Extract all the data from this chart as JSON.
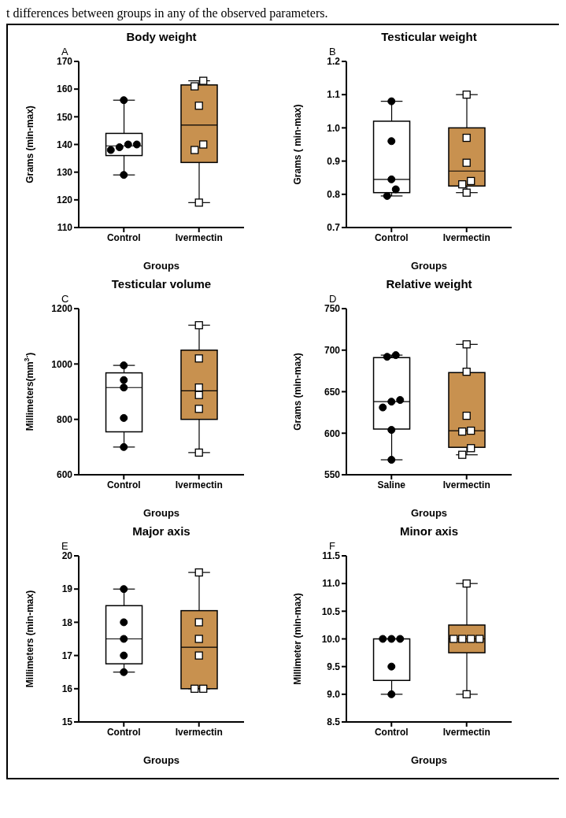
{
  "chart_data": [
    {
      "type": "box",
      "title": "Body weight",
      "annotations": [
        "A",
        "t differences between groups in any of the observed parameters."
      ],
      "xlabel": "Groups",
      "ylabel": "Grams (min-max)",
      "categories": [
        "Control",
        "Ivermectin"
      ],
      "colors": [
        "#ffffff",
        "#c8914f"
      ],
      "ylim": [
        110,
        170
      ],
      "yticks": [
        110,
        120,
        130,
        140,
        150,
        160,
        170
      ],
      "boxes": [
        {
          "low": 129,
          "q1": 136,
          "median": 139.5,
          "q3": 144,
          "high": 156
        },
        {
          "low": 119,
          "q1": 133.5,
          "median": 147,
          "q3": 161.5,
          "high": 163
        }
      ],
      "series": [
        {
          "type": "scatter",
          "marker": "circle",
          "color": "#000000",
          "x": [
            "Control",
            "Control",
            "Control",
            "Control",
            "Control",
            "Control"
          ],
          "values": [
            156,
            140,
            140,
            139,
            138,
            129
          ]
        },
        {
          "type": "scatter",
          "marker": "square",
          "color": "#ffffff",
          "x": [
            "Ivermectin",
            "Ivermectin",
            "Ivermectin",
            "Ivermectin",
            "Ivermectin",
            "Ivermectin"
          ],
          "values": [
            163,
            161,
            154,
            140,
            138,
            119
          ]
        }
      ]
    },
    {
      "type": "box",
      "title": "Testicular weight",
      "annotations": [
        "B"
      ],
      "xlabel": "Groups",
      "ylabel": "Grams ( min-max)",
      "categories": [
        "Control",
        "Ivermectin"
      ],
      "colors": [
        "#ffffff",
        "#c8914f"
      ],
      "ylim": [
        0.7,
        1.2
      ],
      "yticks": [
        0.7,
        0.8,
        0.9,
        {
          "value": 1,
          "label": "1.0"
        },
        1.1,
        1.2
      ],
      "boxes": [
        {
          "low": 0.795,
          "q1": 0.805,
          "median": 0.845,
          "q3": 1.02,
          "high": 1.08
        },
        {
          "low": 0.805,
          "q1": 0.825,
          "median": 0.87,
          "q3": 1.0,
          "high": 1.1
        }
      ],
      "series": [
        {
          "type": "scatter",
          "marker": "circle",
          "color": "#000000",
          "x": [
            "Control",
            "Control",
            "Control",
            "Control",
            "Control"
          ],
          "values": [
            1.08,
            0.96,
            0.845,
            0.815,
            0.795
          ]
        },
        {
          "type": "scatter",
          "marker": "square",
          "color": "#ffffff",
          "x": [
            "Ivermectin",
            "Ivermectin",
            "Ivermectin",
            "Ivermectin",
            "Ivermectin",
            "Ivermectin"
          ],
          "values": [
            1.1,
            0.97,
            0.895,
            0.84,
            0.83,
            0.805
          ]
        }
      ]
    },
    {
      "type": "box",
      "title": "Testicular volume",
      "annotations": [
        "C"
      ],
      "xlabel": "Groups",
      "ylabel": "Millimeters(mm$^{3-}$)",
      "categories": [
        "Control",
        "Ivermectin"
      ],
      "colors": [
        "#ffffff",
        "#c8914f"
      ],
      "ylim": [
        600,
        1200
      ],
      "yticks": [
        600,
        800,
        1000,
        1200
      ],
      "boxes": [
        {
          "low": 700,
          "q1": 755,
          "median": 915,
          "q3": 968,
          "high": 995
        },
        {
          "low": 680,
          "q1": 800,
          "median": 903,
          "q3": 1050,
          "high": 1140
        }
      ],
      "series": [
        {
          "type": "scatter",
          "marker": "circle",
          "color": "#000000",
          "x": [
            "Control",
            "Control",
            "Control",
            "Control",
            "Control"
          ],
          "values": [
            995,
            942,
            915,
            805,
            700
          ]
        },
        {
          "type": "scatter",
          "marker": "square",
          "color": "#ffffff",
          "x": [
            "Ivermectin",
            "Ivermectin",
            "Ivermectin",
            "Ivermectin",
            "Ivermectin",
            "Ivermectin"
          ],
          "values": [
            1140,
            1020,
            915,
            888,
            838,
            680
          ]
        }
      ]
    },
    {
      "type": "box",
      "title": "Relative weight",
      "annotations": [
        "D"
      ],
      "xlabel": "Groups",
      "ylabel": "Grams (min-max)",
      "categories": [
        "Saline",
        "Ivermectin"
      ],
      "colors": [
        "#ffffff",
        "#c8914f"
      ],
      "ylim": [
        550,
        750
      ],
      "yticks": [
        550,
        600,
        650,
        700,
        750
      ],
      "boxes": [
        {
          "low": 568,
          "q1": 605,
          "median": 638,
          "q3": 691,
          "high": 694
        },
        {
          "low": 574,
          "q1": 583,
          "median": 603,
          "q3": 673,
          "high": 707
        }
      ],
      "series": [
        {
          "type": "scatter",
          "marker": "circle",
          "color": "#000000",
          "x": [
            "Saline",
            "Saline",
            "Saline",
            "Saline",
            "Saline",
            "Saline",
            "Saline"
          ],
          "values": [
            694,
            692,
            640,
            638,
            631,
            604,
            568
          ]
        },
        {
          "type": "scatter",
          "marker": "square",
          "color": "#ffffff",
          "x": [
            "Ivermectin",
            "Ivermectin",
            "Ivermectin",
            "Ivermectin",
            "Ivermectin",
            "Ivermectin",
            "Ivermectin"
          ],
          "values": [
            707,
            674,
            621,
            603,
            602,
            582,
            574
          ]
        }
      ]
    },
    {
      "type": "box",
      "title": "Major axis",
      "annotations": [
        "E"
      ],
      "xlabel": "Groups",
      "ylabel": "Millimeters (min-max)",
      "categories": [
        "Control",
        "Ivermectin"
      ],
      "colors": [
        "#ffffff",
        "#c8914f"
      ],
      "ylim": [
        15,
        20
      ],
      "yticks": [
        15,
        16,
        17,
        18,
        19,
        20
      ],
      "boxes": [
        {
          "low": 16.5,
          "q1": 16.75,
          "median": 17.5,
          "q3": 18.5,
          "high": 19
        },
        {
          "low": 16,
          "q1": 16,
          "median": 17.25,
          "q3": 18.35,
          "high": 19.5
        }
      ],
      "series": [
        {
          "type": "scatter",
          "marker": "circle",
          "color": "#000000",
          "x": [
            "Control",
            "Control",
            "Control",
            "Control",
            "Control"
          ],
          "values": [
            19,
            18,
            17.5,
            17,
            16.5
          ]
        },
        {
          "type": "scatter",
          "marker": "square",
          "color": "#ffffff",
          "x": [
            "Ivermectin",
            "Ivermectin",
            "Ivermectin",
            "Ivermectin",
            "Ivermectin",
            "Ivermectin"
          ],
          "values": [
            19.5,
            18,
            17.5,
            17,
            16,
            16
          ]
        }
      ]
    },
    {
      "type": "box",
      "title": "Minor axis",
      "annotations": [
        "F"
      ],
      "xlabel": "Groups",
      "ylabel": "Millimeter (min-max)",
      "categories": [
        "Control",
        "Ivermectin"
      ],
      "colors": [
        "#ffffff",
        "#c8914f"
      ],
      "ylim": [
        8.5,
        11.5
      ],
      "yticks": [
        8.5,
        {
          "value": 9,
          "label": "9.0"
        },
        9.5,
        {
          "value": 10,
          "label": "10.0"
        },
        10.5,
        {
          "value": 11,
          "label": "11.0"
        },
        11.5
      ],
      "boxes": [
        {
          "low": 9,
          "q1": 9.25,
          "median": 10,
          "q3": 10,
          "high": 10
        },
        {
          "low": 9,
          "q1": 9.75,
          "median": 10,
          "q3": 10.25,
          "high": 11
        }
      ],
      "series": [
        {
          "type": "scatter",
          "marker": "circle",
          "color": "#000000",
          "x": [
            "Control",
            "Control",
            "Control",
            "Control",
            "Control"
          ],
          "values": [
            10,
            10,
            10,
            9.5,
            9
          ]
        },
        {
          "type": "scatter",
          "marker": "square",
          "color": "#ffffff",
          "x": [
            "Ivermectin",
            "Ivermectin",
            "Ivermectin",
            "Ivermectin",
            "Ivermectin",
            "Ivermectin"
          ],
          "values": [
            11,
            10,
            10,
            10,
            10,
            9
          ]
        }
      ]
    }
  ]
}
